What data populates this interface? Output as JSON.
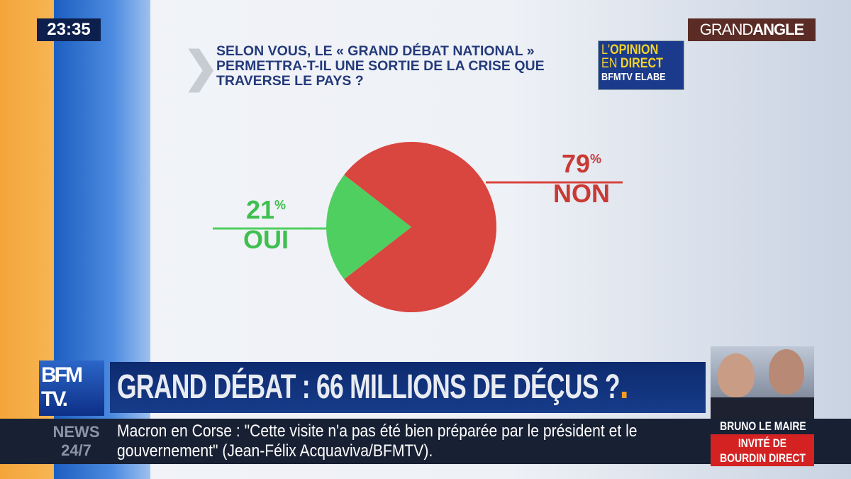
{
  "clock": "23:35",
  "program": {
    "part1": "GRAND",
    "part2": "ANGLE"
  },
  "question": "Selon vous, le « Grand débat national » permettra-t-il une sortie de la crise que traverse le pays ?",
  "badge": {
    "line1a": "L'",
    "line1b": "OPINION",
    "line2a": "EN ",
    "line2b": "DIRECT",
    "line3": "BFMTV ELABE"
  },
  "chart_data": {
    "type": "pie",
    "slices": [
      {
        "label": "OUI",
        "value": 21,
        "color": "#4fcf5f"
      },
      {
        "label": "NON",
        "value": 79,
        "color": "#d9453f"
      }
    ],
    "unit": "%"
  },
  "labels": {
    "oui_pct": "21",
    "non_pct": "79",
    "pct_sign": "%"
  },
  "headline": "GRAND DÉBAT : 66 MILLIONS DE DÉÇUS ?",
  "logo": "BFM TV.",
  "news_label": {
    "line1": "NEWS",
    "line2": "24/7"
  },
  "ticker": "Macron en Corse : \"Cette visite n'a pas été bien préparée par le président et le gouvernement\" (Jean-Félix Acquaviva/BFMTV).",
  "guest": {
    "name": "BRUNO LE MAIRE",
    "line1": "INVITÉ DE",
    "line2": "BOURDIN DIRECT"
  }
}
